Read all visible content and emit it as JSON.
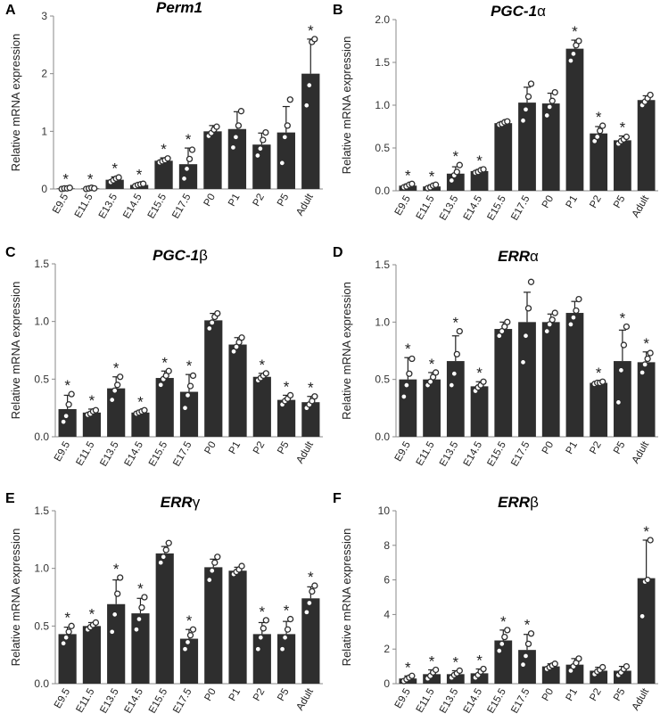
{
  "chart_data": [
    {
      "letter": "A",
      "title": "Perm1",
      "title_suffix": "",
      "type": "bar",
      "ylabel": "Relative mRNA expression",
      "ylim": [
        0,
        3
      ],
      "yticks": [
        "0",
        "1",
        "2",
        "3"
      ],
      "categories": [
        "E9.5",
        "E11.5",
        "E13.5",
        "E14.5",
        "E15.5",
        "E17.5",
        "P0",
        "P1",
        "P2",
        "P5",
        "Adult"
      ],
      "values": [
        0.01,
        0.01,
        0.16,
        0.07,
        0.49,
        0.43,
        1.0,
        1.04,
        0.77,
        0.98,
        2.0
      ],
      "errors": [
        0.01,
        0.01,
        0.05,
        0.03,
        0.05,
        0.28,
        0.1,
        0.3,
        0.2,
        0.45,
        0.6
      ],
      "points": [
        [
          0.0,
          0.01,
          0.01,
          0.02
        ],
        [
          0.0,
          0.01,
          0.02,
          0.01
        ],
        [
          0.12,
          0.15,
          0.18,
          0.2
        ],
        [
          0.05,
          0.07,
          0.08,
          0.09
        ],
        [
          0.46,
          0.48,
          0.5,
          0.53
        ],
        [
          0.18,
          0.35,
          0.52,
          0.68
        ],
        [
          0.92,
          0.97,
          1.03,
          1.08
        ],
        [
          0.72,
          0.9,
          1.1,
          1.35
        ],
        [
          0.58,
          0.7,
          0.85,
          0.98
        ],
        [
          0.45,
          0.9,
          1.1,
          1.55
        ],
        [
          1.45,
          1.8,
          2.55,
          2.6
        ]
      ],
      "significant": [
        true,
        true,
        true,
        true,
        true,
        true,
        false,
        false,
        false,
        false,
        true
      ]
    },
    {
      "letter": "B",
      "title": "PGC-1",
      "title_suffix": "α",
      "type": "bar",
      "ylabel": "Relative mRNA expression",
      "ylim": [
        0,
        2.0
      ],
      "yticks": [
        "0.0",
        "0.5",
        "1.0",
        "1.5",
        "2.0"
      ],
      "categories": [
        "E9.5",
        "E11.5",
        "E13.5",
        "E14.5",
        "E15.5",
        "E17.5",
        "P0",
        "P1",
        "P2",
        "P5",
        "Adult"
      ],
      "values": [
        0.06,
        0.05,
        0.2,
        0.23,
        0.79,
        1.03,
        1.02,
        1.66,
        0.67,
        0.59,
        1.06
      ],
      "errors": [
        0.02,
        0.02,
        0.08,
        0.02,
        0.02,
        0.18,
        0.12,
        0.1,
        0.08,
        0.05,
        0.05
      ],
      "points": [
        [
          0.04,
          0.05,
          0.07,
          0.08
        ],
        [
          0.03,
          0.04,
          0.06,
          0.07
        ],
        [
          0.12,
          0.18,
          0.22,
          0.3
        ],
        [
          0.21,
          0.22,
          0.24,
          0.25
        ],
        [
          0.77,
          0.78,
          0.8,
          0.81
        ],
        [
          0.82,
          0.95,
          1.1,
          1.25
        ],
        [
          0.88,
          0.98,
          1.05,
          1.15
        ],
        [
          1.52,
          1.6,
          1.7,
          1.75
        ],
        [
          0.58,
          0.63,
          0.7,
          0.76
        ],
        [
          0.55,
          0.58,
          0.6,
          0.63
        ],
        [
          1.0,
          1.04,
          1.08,
          1.12
        ]
      ],
      "significant": [
        true,
        true,
        true,
        true,
        false,
        false,
        false,
        true,
        true,
        true,
        false
      ]
    },
    {
      "letter": "C",
      "title": "PGC-1",
      "title_suffix": "β",
      "type": "bar",
      "ylabel": "Relative mRNA expression",
      "ylim": [
        0,
        1.5
      ],
      "yticks": [
        "0.0",
        "0.5",
        "1.0",
        "1.5"
      ],
      "categories": [
        "E9.5",
        "E11.5",
        "E13.5",
        "E14.5",
        "E15.5",
        "E17.5",
        "P0",
        "P1",
        "P2",
        "P5",
        "Adult"
      ],
      "values": [
        0.24,
        0.21,
        0.42,
        0.21,
        0.51,
        0.39,
        1.01,
        0.8,
        0.52,
        0.32,
        0.3
      ],
      "errors": [
        0.12,
        0.03,
        0.1,
        0.02,
        0.06,
        0.15,
        0.06,
        0.06,
        0.03,
        0.04,
        0.05
      ],
      "points": [
        [
          0.13,
          0.18,
          0.28,
          0.37
        ],
        [
          0.19,
          0.2,
          0.22,
          0.23
        ],
        [
          0.32,
          0.4,
          0.45,
          0.52
        ],
        [
          0.2,
          0.21,
          0.22,
          0.23
        ],
        [
          0.45,
          0.5,
          0.53,
          0.57
        ],
        [
          0.25,
          0.36,
          0.44,
          0.53
        ],
        [
          0.94,
          0.99,
          1.04,
          1.07
        ],
        [
          0.74,
          0.78,
          0.82,
          0.86
        ],
        [
          0.49,
          0.51,
          0.53,
          0.55
        ],
        [
          0.28,
          0.31,
          0.33,
          0.36
        ],
        [
          0.25,
          0.28,
          0.31,
          0.35
        ]
      ],
      "significant": [
        true,
        true,
        true,
        true,
        true,
        true,
        false,
        false,
        true,
        true,
        true
      ]
    },
    {
      "letter": "D",
      "title": "ERR",
      "title_suffix": "α",
      "type": "bar",
      "ylabel": "Relative mRNA expression",
      "ylim": [
        0,
        1.5
      ],
      "yticks": [
        "0.0",
        "0.5",
        "1.0",
        "1.5"
      ],
      "categories": [
        "E9.5",
        "E11.5",
        "E13.5",
        "E14.5",
        "E15.5",
        "E17.5",
        "P0",
        "P1",
        "P2",
        "P5",
        "Adult"
      ],
      "values": [
        0.5,
        0.5,
        0.66,
        0.44,
        0.94,
        1.0,
        1.0,
        1.08,
        0.47,
        0.66,
        0.65
      ],
      "errors": [
        0.19,
        0.06,
        0.22,
        0.04,
        0.06,
        0.26,
        0.07,
        0.1,
        0.01,
        0.27,
        0.09
      ],
      "points": [
        [
          0.35,
          0.45,
          0.55,
          0.68
        ],
        [
          0.45,
          0.48,
          0.52,
          0.56
        ],
        [
          0.45,
          0.55,
          0.72,
          0.92
        ],
        [
          0.4,
          0.43,
          0.45,
          0.48
        ],
        [
          0.88,
          0.92,
          0.96,
          1.0
        ],
        [
          0.65,
          0.88,
          1.12,
          1.35
        ],
        [
          0.92,
          0.98,
          1.02,
          1.08
        ],
        [
          0.98,
          1.04,
          1.1,
          1.2
        ],
        [
          0.46,
          0.47,
          0.47,
          0.48
        ],
        [
          0.3,
          0.58,
          0.8,
          0.96
        ],
        [
          0.56,
          0.63,
          0.68,
          0.73
        ]
      ],
      "significant": [
        true,
        true,
        true,
        true,
        false,
        false,
        false,
        false,
        true,
        true,
        true
      ]
    },
    {
      "letter": "E",
      "title": "ERR",
      "title_suffix": "γ",
      "type": "bar",
      "ylabel": "Relative mRNA expression",
      "ylim": [
        0,
        1.5
      ],
      "yticks": [
        "0.0",
        "0.5",
        "1.0",
        "1.5"
      ],
      "categories": [
        "E9.5",
        "E11.5",
        "E13.5",
        "E14.5",
        "E15.5",
        "E17.5",
        "P0",
        "P1",
        "P2",
        "P5",
        "Adult"
      ],
      "values": [
        0.43,
        0.5,
        0.69,
        0.61,
        1.13,
        0.39,
        1.01,
        0.98,
        0.43,
        0.43,
        0.74
      ],
      "errors": [
        0.06,
        0.03,
        0.21,
        0.13,
        0.06,
        0.08,
        0.07,
        0.03,
        0.1,
        0.11,
        0.1
      ],
      "points": [
        [
          0.35,
          0.4,
          0.45,
          0.5
        ],
        [
          0.47,
          0.49,
          0.51,
          0.53
        ],
        [
          0.45,
          0.6,
          0.78,
          0.92
        ],
        [
          0.47,
          0.56,
          0.66,
          0.75
        ],
        [
          1.05,
          1.1,
          1.16,
          1.22
        ],
        [
          0.3,
          0.36,
          0.42,
          0.47
        ],
        [
          0.9,
          0.98,
          1.05,
          1.1
        ],
        [
          0.95,
          0.97,
          0.99,
          1.02
        ],
        [
          0.3,
          0.4,
          0.48,
          0.55
        ],
        [
          0.3,
          0.4,
          0.47,
          0.56
        ],
        [
          0.62,
          0.7,
          0.8,
          0.85
        ]
      ],
      "significant": [
        true,
        true,
        true,
        true,
        false,
        true,
        false,
        false,
        true,
        true,
        true
      ]
    },
    {
      "letter": "F",
      "title": "ERR",
      "title_suffix": "β",
      "type": "bar",
      "ylabel": "Relative mRNA expression",
      "ylim": [
        0,
        10
      ],
      "yticks": [
        "0",
        "2",
        "4",
        "6",
        "8",
        "10"
      ],
      "categories": [
        "E9.5",
        "E11.5",
        "E13.5",
        "E14.5",
        "E15.5",
        "E17.5",
        "P0",
        "P1",
        "P2",
        "P5",
        "Adult"
      ],
      "values": [
        0.3,
        0.55,
        0.55,
        0.6,
        2.5,
        1.95,
        1.0,
        1.1,
        0.75,
        0.75,
        6.1
      ],
      "errors": [
        0.15,
        0.25,
        0.2,
        0.25,
        0.6,
        0.9,
        0.15,
        0.35,
        0.2,
        0.25,
        2.2
      ],
      "points": [
        [
          0.15,
          0.25,
          0.35,
          0.45
        ],
        [
          0.3,
          0.45,
          0.65,
          0.8
        ],
        [
          0.35,
          0.5,
          0.6,
          0.75
        ],
        [
          0.35,
          0.5,
          0.7,
          0.85
        ],
        [
          1.9,
          2.3,
          2.7,
          3.1
        ],
        [
          1.1,
          1.6,
          2.3,
          2.9
        ],
        [
          0.85,
          0.95,
          1.05,
          1.15
        ],
        [
          0.75,
          1.0,
          1.2,
          1.45
        ],
        [
          0.55,
          0.7,
          0.8,
          0.95
        ],
        [
          0.5,
          0.65,
          0.85,
          1.0
        ],
        [
          3.9,
          5.9,
          6.0,
          8.3
        ]
      ],
      "significant": [
        true,
        true,
        true,
        true,
        true,
        true,
        false,
        false,
        false,
        false,
        true
      ]
    }
  ],
  "star_symbol": "*",
  "colors": {
    "bar": "#2e2e2e",
    "point_fill": "#ffffff",
    "point_stroke": "#2e2e2e",
    "axis": "#888888",
    "error": "#222222"
  }
}
